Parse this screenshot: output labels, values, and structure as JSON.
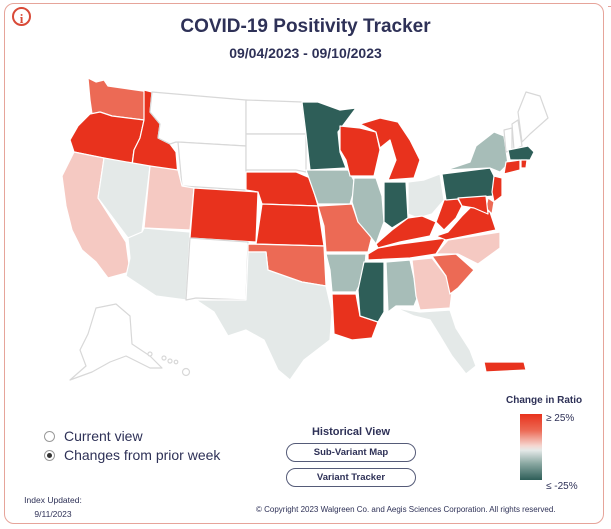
{
  "header": {
    "title": "COVID-19 Positivity Tracker",
    "date_range": "09/04/2023 - 09/10/2023",
    "info_icon": "info-icon",
    "info_glyph": "i"
  },
  "view_options": [
    {
      "label": "Current view",
      "selected": false
    },
    {
      "label": "Changes from prior week",
      "selected": true
    }
  ],
  "historical": {
    "title": "Historical View",
    "buttons": [
      "Sub-Variant Map",
      "Variant Tracker"
    ]
  },
  "legend": {
    "title": "Change in Ratio",
    "high_label": "≥ 25%",
    "low_label": "≤ -25%",
    "colors": {
      "strong_up": "#e8321d",
      "up": "#ec6a55",
      "slight_up": "#f5c9c2",
      "neutral": "#e4e9e8",
      "down": "#a7bdb8",
      "strong_down": "#2e5e58"
    }
  },
  "footer": {
    "index_updated_label": "Index Updated:",
    "index_updated_date": "9/11/2023",
    "copyright": "© Copyright 2023 Walgreen Co. and Aegis Sciences Corporation. All rights reserved."
  },
  "map_data": {
    "WA": "up",
    "OR": "strong_up",
    "ID": "strong_up",
    "MT": "none",
    "WY": "none",
    "ND": "none",
    "SD": "none",
    "CA": "slight_up",
    "NV": "neutral",
    "UT": "slight_up",
    "AZ": "neutral",
    "CO": "strong_up",
    "NM": "none",
    "NE": "strong_up",
    "KS": "strong_up",
    "OK": "up",
    "TX": "neutral",
    "MN": "strong_down",
    "IA": "down",
    "MO": "up",
    "AR": "down",
    "LA": "strong_up",
    "WI": "strong_up",
    "IL": "down",
    "MI": "strong_up",
    "IN": "strong_down",
    "OH": "neutral",
    "KY": "strong_up",
    "TN": "strong_up",
    "MS": "strong_down",
    "AL": "down",
    "GA": "slight_up",
    "FL": "neutral",
    "SC": "up",
    "NC": "slight_up",
    "VA": "strong_up",
    "WV": "strong_up",
    "PA": "strong_down",
    "NY": "down",
    "NJ": "strong_up",
    "MD": "strong_up",
    "VT": "none",
    "NH": "none",
    "ME": "none",
    "MA": "strong_down",
    "CT": "strong_up",
    "RI": "strong_up",
    "DE": "up",
    "AK": "none",
    "HI": "none",
    "PR": "strong_up"
  }
}
